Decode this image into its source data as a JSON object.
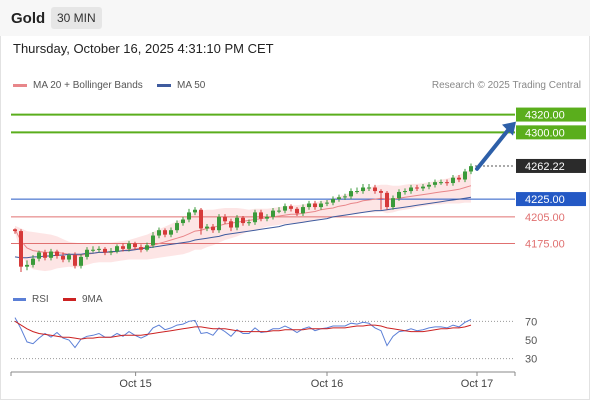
{
  "header": {
    "symbol": "Gold",
    "timeframe": "30 MIN",
    "datetime": "Thursday, October 16, 2025 4:31:10 PM CET"
  },
  "legend": {
    "ma20_label": "MA 20 + Bollinger Bands",
    "ma50_label": "MA 50",
    "credit": "Research © 2025 Trading Central"
  },
  "rsi_legend": {
    "rsi_label": "RSI",
    "ma_label": "9MA"
  },
  "colors": {
    "bull": "#3a9a3a",
    "bear": "#d63a3a",
    "ma20": "#e8868a",
    "ma50": "#3f5b9e",
    "band": "#fde2e2",
    "target": "#5aae1c",
    "pivot": "#2459c5",
    "support": "#e07070",
    "price": "#333333",
    "rsi": "#5b7fd6",
    "rsi_ma": "#cc2222"
  },
  "chart_data": [
    {
      "type": "candlestick",
      "title": "Gold 30 MIN",
      "x_tick_labels": [
        "Oct 15",
        "Oct 16",
        "Oct 17"
      ],
      "x_tick_positions": [
        20.1,
        52.0,
        77.0
      ],
      "ylim": [
        4134,
        4342
      ],
      "grid": false,
      "legend_placement": "top-left",
      "close": [
        4189,
        4149,
        4151,
        4158,
        4165,
        4159,
        4166,
        4161,
        4157,
        4162,
        4150,
        4160,
        4168,
        4168,
        4169,
        4165,
        4166,
        4172,
        4169,
        4175,
        4171,
        4168,
        4173,
        4184,
        4190,
        4185,
        4190,
        4198,
        4202,
        4210,
        4213,
        4192,
        4194,
        4190,
        4205,
        4200,
        4193,
        4204,
        4198,
        4199,
        4210,
        4203,
        4205,
        4212,
        4212,
        4217,
        4214,
        4209,
        4216,
        4220,
        4216,
        4220,
        4221,
        4225,
        4227,
        4228,
        4234,
        4234,
        4238,
        4238,
        4234,
        4232,
        4216,
        4226,
        4233,
        4234,
        4238,
        4237,
        4239,
        4241,
        4244,
        4244,
        4243,
        4249,
        4247,
        4256,
        4262
      ],
      "open": [
        4191,
        4189,
        4149,
        4151,
        4158,
        4165,
        4159,
        4166,
        4161,
        4157,
        4162,
        4150,
        4160,
        4168,
        4168,
        4169,
        4165,
        4166,
        4172,
        4169,
        4175,
        4171,
        4168,
        4173,
        4184,
        4190,
        4185,
        4190,
        4198,
        4202,
        4210,
        4213,
        4192,
        4194,
        4190,
        4205,
        4200,
        4193,
        4204,
        4198,
        4199,
        4210,
        4203,
        4205,
        4212,
        4212,
        4217,
        4214,
        4209,
        4216,
        4220,
        4216,
        4220,
        4221,
        4225,
        4227,
        4228,
        4234,
        4234,
        4238,
        4238,
        4234,
        4232,
        4216,
        4226,
        4233,
        4234,
        4238,
        4237,
        4239,
        4241,
        4244,
        4244,
        4243,
        4249,
        4247,
        4256
      ],
      "high": [
        4192,
        4191,
        4156,
        4162,
        4167,
        4168,
        4169,
        4168,
        4165,
        4164,
        4165,
        4163,
        4171,
        4172,
        4172,
        4171,
        4170,
        4174,
        4175,
        4178,
        4177,
        4174,
        4176,
        4188,
        4193,
        4192,
        4193,
        4201,
        4205,
        4214,
        4216,
        4215,
        4197,
        4197,
        4208,
        4208,
        4203,
        4207,
        4206,
        4202,
        4213,
        4213,
        4208,
        4215,
        4216,
        4220,
        4219,
        4216,
        4219,
        4223,
        4223,
        4223,
        4224,
        4228,
        4230,
        4231,
        4237,
        4238,
        4242,
        4242,
        4241,
        4236,
        4234,
        4229,
        4236,
        4237,
        4241,
        4241,
        4242,
        4244,
        4247,
        4247,
        4247,
        4252,
        4252,
        4259,
        4265
      ],
      "low": [
        4186,
        4143,
        4145,
        4148,
        4155,
        4156,
        4156,
        4158,
        4154,
        4154,
        4147,
        4147,
        4157,
        4165,
        4165,
        4162,
        4162,
        4164,
        4166,
        4166,
        4168,
        4165,
        4166,
        4170,
        4181,
        4182,
        4182,
        4187,
        4195,
        4199,
        4207,
        4185,
        4189,
        4187,
        4187,
        4197,
        4189,
        4190,
        4195,
        4195,
        4196,
        4200,
        4200,
        4202,
        4209,
        4209,
        4211,
        4206,
        4206,
        4213,
        4213,
        4213,
        4217,
        4218,
        4222,
        4224,
        4225,
        4231,
        4231,
        4234,
        4231,
        4213,
        4213,
        4213,
        4223,
        4230,
        4231,
        4234,
        4234,
        4236,
        4238,
        4241,
        4240,
        4240,
        4244,
        4244,
        4253
      ],
      "series": [
        {
          "name": "MA 20 + Bollinger Bands",
          "type": "line",
          "values": [
            4191,
            4178,
            4170,
            4167,
            4166,
            4165,
            4165,
            4165,
            4164,
            4163,
            4162,
            4162,
            4163,
            4164,
            4165,
            4165,
            4165,
            4166,
            4167,
            4168,
            4169,
            4170,
            4171,
            4173,
            4175,
            4177,
            4179,
            4181,
            4183,
            4186,
            4189,
            4190,
            4192,
            4193,
            4195,
            4197,
            4198,
            4199,
            4200,
            4201,
            4202,
            4203,
            4204,
            4205,
            4206,
            4207,
            4208,
            4208,
            4209,
            4210,
            4211,
            4213,
            4214,
            4215,
            4217,
            4218,
            4220,
            4221,
            4223,
            4224,
            4225,
            4226,
            4225,
            4225,
            4226,
            4227,
            4228,
            4229,
            4230,
            4231,
            4232,
            4233,
            4234,
            4235,
            4236,
            4238,
            4240
          ]
        },
        {
          "name": "MA 50",
          "type": "line",
          "values": [
            4160,
            4159,
            4159,
            4160,
            4160,
            4161,
            4161,
            4162,
            4162,
            4163,
            4163,
            4163,
            4164,
            4164,
            4165,
            4165,
            4166,
            4166,
            4167,
            4167,
            4168,
            4169,
            4170,
            4171,
            4172,
            4173,
            4174,
            4175,
            4176,
            4177,
            4179,
            4180,
            4181,
            4182,
            4183,
            4185,
            4186,
            4187,
            4188,
            4189,
            4190,
            4191,
            4192,
            4193,
            4194,
            4196,
            4197,
            4198,
            4199,
            4200,
            4201,
            4202,
            4203,
            4205,
            4206,
            4207,
            4208,
            4209,
            4210,
            4211,
            4212,
            4212,
            4213,
            4214,
            4215,
            4216,
            4217,
            4218,
            4219,
            4220,
            4221,
            4222,
            4223,
            4224,
            4225,
            4226,
            4227
          ]
        },
        {
          "name": "Bollinger Upper",
          "type": "band",
          "values": [
            4195,
            4192,
            4189,
            4188,
            4187,
            4186,
            4185,
            4183,
            4180,
            4177,
            4176,
            4175,
            4175,
            4175,
            4176,
            4176,
            4176,
            4177,
            4178,
            4179,
            4181,
            4183,
            4185,
            4188,
            4191,
            4194,
            4197,
            4200,
            4203,
            4207,
            4210,
            4212,
            4213,
            4213,
            4214,
            4215,
            4215,
            4215,
            4214,
            4213,
            4214,
            4214,
            4214,
            4215,
            4216,
            4217,
            4218,
            4218,
            4219,
            4220,
            4221,
            4223,
            4224,
            4226,
            4228,
            4230,
            4232,
            4234,
            4236,
            4238,
            4240,
            4241,
            4241,
            4240,
            4240,
            4241,
            4242,
            4242,
            4243,
            4244,
            4245,
            4247,
            4248,
            4250,
            4252,
            4255,
            4259
          ]
        },
        {
          "name": "Bollinger Lower",
          "type": "band",
          "values": [
            4187,
            4164,
            4151,
            4146,
            4145,
            4144,
            4145,
            4147,
            4148,
            4149,
            4148,
            4149,
            4151,
            4153,
            4154,
            4154,
            4154,
            4155,
            4156,
            4157,
            4157,
            4157,
            4157,
            4158,
            4159,
            4160,
            4161,
            4162,
            4163,
            4165,
            4168,
            4168,
            4171,
            4173,
            4176,
            4179,
            4181,
            4183,
            4186,
            4189,
            4190,
            4192,
            4194,
            4195,
            4196,
            4197,
            4198,
            4198,
            4199,
            4200,
            4201,
            4203,
            4204,
            4204,
            4206,
            4206,
            4208,
            4208,
            4210,
            4210,
            4210,
            4211,
            4209,
            4210,
            4212,
            4213,
            4214,
            4216,
            4217,
            4218,
            4219,
            4219,
            4220,
            4220,
            4220,
            4221,
            4221
          ]
        }
      ],
      "levels": [
        {
          "name": "target-2",
          "value": 4320,
          "label": "4320.00",
          "style": "target"
        },
        {
          "name": "target-1",
          "value": 4300,
          "label": "4300.00",
          "style": "target"
        },
        {
          "name": "last-price",
          "value": 4262.22,
          "label": "4262.22",
          "style": "price"
        },
        {
          "name": "pivot",
          "value": 4225,
          "label": "4225.00",
          "style": "pivot"
        },
        {
          "name": "support-1",
          "value": 4205,
          "label": "4205.00",
          "style": "support"
        },
        {
          "name": "support-2",
          "value": 4175,
          "label": "4175.00",
          "style": "support"
        }
      ],
      "arrow": {
        "from": [
          77.0,
          4259
        ],
        "to": [
          83.5,
          4312
        ]
      }
    },
    {
      "type": "line",
      "title": "RSI",
      "ylim": [
        20,
        80
      ],
      "ytick_labels": [
        "70",
        "50",
        "30"
      ],
      "yticks": [
        70,
        50,
        30
      ],
      "grid": false,
      "series": [
        {
          "name": "RSI",
          "values": [
            74,
            62,
            48,
            46,
            52,
            57,
            53,
            58,
            52,
            50,
            42,
            51,
            54,
            55,
            57,
            53,
            53,
            57,
            54,
            59,
            55,
            52,
            55,
            63,
            66,
            61,
            63,
            66,
            67,
            70,
            71,
            57,
            58,
            55,
            63,
            59,
            54,
            61,
            57,
            57,
            63,
            58,
            59,
            62,
            62,
            65,
            62,
            58,
            62,
            64,
            60,
            62,
            63,
            65,
            65,
            65,
            68,
            67,
            69,
            68,
            63,
            60,
            44,
            54,
            59,
            60,
            62,
            60,
            61,
            63,
            64,
            64,
            63,
            66,
            64,
            69,
            72
          ]
        },
        {
          "name": "9MA",
          "values": [
            70,
            66,
            62,
            59,
            57,
            56,
            55,
            54,
            53,
            53,
            52,
            51,
            52,
            52,
            53,
            53,
            53,
            54,
            55,
            55,
            55,
            55,
            56,
            57,
            58,
            59,
            60,
            61,
            62,
            63,
            64,
            64,
            63,
            62,
            62,
            62,
            61,
            60,
            59,
            59,
            59,
            59,
            59,
            60,
            60,
            61,
            61,
            61,
            61,
            62,
            62,
            62,
            62,
            63,
            63,
            63,
            64,
            65,
            65,
            66,
            66,
            65,
            63,
            62,
            61,
            60,
            59,
            59,
            59,
            60,
            61,
            62,
            62,
            63,
            63,
            64,
            66
          ]
        }
      ]
    }
  ]
}
